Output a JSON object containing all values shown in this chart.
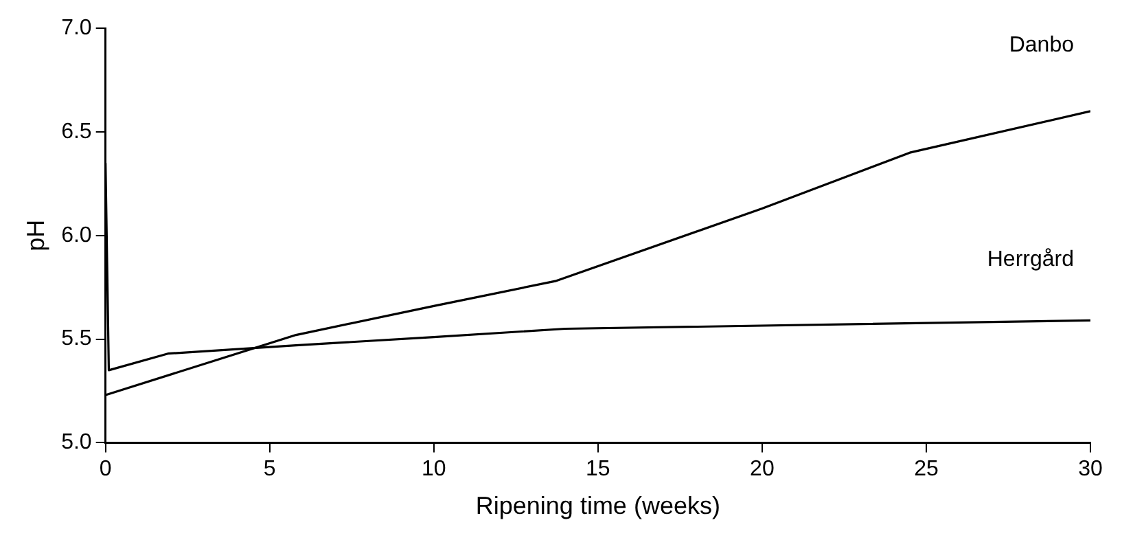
{
  "chart_data": {
    "type": "line",
    "xlabel": "Ripening time (weeks)",
    "ylabel": "pH",
    "xlim": [
      0,
      30
    ],
    "xticks": [
      0,
      5,
      10,
      15,
      20,
      25,
      30
    ],
    "ylim": [
      5.0,
      7.0
    ],
    "yticks": [
      {
        "value": 5.0,
        "label": "5.0"
      },
      {
        "value": 5.5,
        "label": "5.5"
      },
      {
        "value": 6.0,
        "label": "6.0"
      },
      {
        "value": 6.5,
        "label": "6.5"
      },
      {
        "value": 7.0,
        "label": "7.0"
      }
    ],
    "grid": false,
    "marker": "none",
    "line_style": "solid",
    "series": [
      {
        "name": "Danbo",
        "color": "#000000",
        "x": [
          0,
          5.8,
          10,
          13.7,
          20,
          24.5,
          30
        ],
        "values": [
          5.23,
          5.52,
          5.66,
          5.78,
          6.13,
          6.4,
          6.6
        ]
      },
      {
        "name": "Herrgård",
        "color": "#000000",
        "x": [
          0,
          0.1,
          1.9,
          5.8,
          10,
          14,
          30
        ],
        "values": [
          6.35,
          5.35,
          5.43,
          5.47,
          5.51,
          5.55,
          5.59
        ]
      }
    ]
  }
}
